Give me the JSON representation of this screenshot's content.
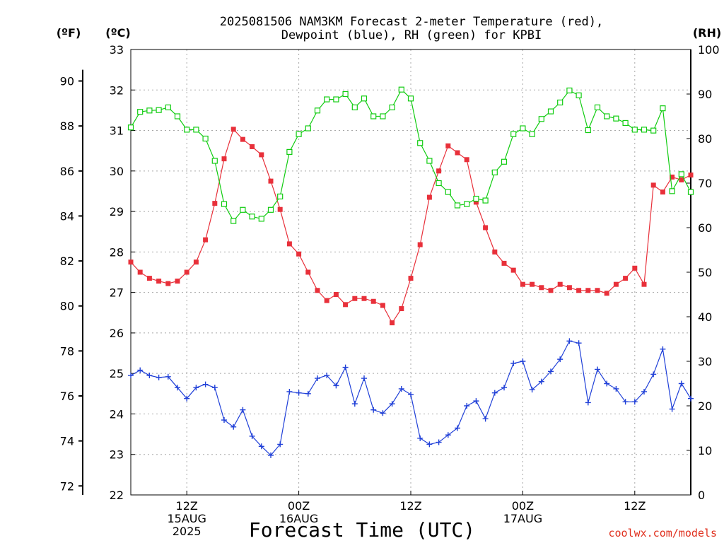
{
  "title_line1": "2025081506 NAM3KM Forecast 2-meter Temperature (red),",
  "title_line2": "Dewpoint (blue), RH (green) for KPBI",
  "unit_f": "(ºF)",
  "unit_c": "(ºC)",
  "unit_rh": "(RH)",
  "xlabel": "Forecast Time (UTC)",
  "credit": "coolwx.com/models",
  "colors": {
    "temperature": "#e8303a",
    "dewpoint": "#2040d8",
    "rh": "#10cc10",
    "credit": "#e0301e"
  },
  "chart_data": {
    "type": "line",
    "x": [
      6,
      7,
      8,
      9,
      10,
      11,
      12,
      13,
      14,
      15,
      16,
      17,
      18,
      19,
      20,
      21,
      22,
      23,
      24,
      25,
      26,
      27,
      28,
      29,
      30,
      31,
      32,
      33,
      34,
      35,
      36,
      37,
      38,
      39,
      40,
      41,
      42,
      43,
      44,
      45,
      46,
      47,
      48,
      49,
      50,
      51,
      52,
      53,
      54,
      55,
      56,
      57,
      58,
      59,
      60,
      61,
      62,
      63,
      64,
      65,
      66
    ],
    "x_tick_hours": [
      12,
      24,
      36,
      48,
      60
    ],
    "x_tick_labels": [
      [
        "12Z",
        "15AUG",
        "2025"
      ],
      [
        "00Z",
        "16AUG"
      ],
      [
        "12Z"
      ],
      [
        "00Z",
        "17AUG"
      ],
      [
        "12Z"
      ]
    ],
    "xlim": [
      6,
      66
    ],
    "left_axis_c": {
      "ylim": [
        22,
        33
      ],
      "ticks": [
        22,
        23,
        24,
        25,
        26,
        27,
        28,
        29,
        30,
        31,
        32,
        33
      ]
    },
    "left_axis_f": {
      "ticks": [
        72,
        74,
        76,
        78,
        80,
        82,
        84,
        86,
        88,
        90
      ]
    },
    "right_axis_rh": {
      "ylim": [
        0,
        100
      ],
      "ticks": [
        0,
        10,
        20,
        30,
        40,
        50,
        60,
        70,
        80,
        90,
        100
      ]
    },
    "series": [
      {
        "key": "temperature",
        "axis": "c",
        "marker": "filled-square",
        "values": [
          27.75,
          27.5,
          27.35,
          27.28,
          27.22,
          27.28,
          27.5,
          27.75,
          28.3,
          29.2,
          30.3,
          31.03,
          30.78,
          30.6,
          30.4,
          29.75,
          29.05,
          28.2,
          27.95,
          27.5,
          27.05,
          26.8,
          26.95,
          26.7,
          26.85,
          26.85,
          26.78,
          26.68,
          26.25,
          26.6,
          27.35,
          28.18,
          29.35,
          30.0,
          30.62,
          30.45,
          30.28,
          29.23,
          28.6,
          28.0,
          27.72,
          27.55,
          27.2,
          27.2,
          27.12,
          27.05,
          27.2,
          27.12,
          27.05,
          27.05,
          27.05,
          26.98,
          27.2,
          27.35,
          27.6,
          27.2,
          29.65,
          29.48,
          29.85,
          29.78,
          29.9
        ]
      },
      {
        "key": "dewpoint",
        "axis": "c",
        "marker": "plus",
        "values": [
          24.95,
          25.08,
          24.95,
          24.9,
          24.92,
          24.65,
          24.38,
          24.65,
          24.73,
          24.65,
          23.85,
          23.68,
          24.1,
          23.45,
          23.2,
          22.98,
          23.25,
          24.55,
          24.52,
          24.5,
          24.88,
          24.95,
          24.7,
          25.15,
          24.25,
          24.88,
          24.1,
          24.02,
          24.25,
          24.62,
          24.48,
          23.4,
          23.25,
          23.3,
          23.48,
          23.65,
          24.2,
          24.32,
          23.88,
          24.52,
          24.65,
          25.25,
          25.3,
          24.6,
          24.8,
          25.05,
          25.35,
          25.8,
          25.75,
          24.28,
          25.1,
          24.75,
          24.62,
          24.3,
          24.3,
          24.55,
          24.98,
          25.6,
          24.12,
          24.75,
          24.38
        ]
      },
      {
        "key": "rh",
        "axis": "rh",
        "marker": "open-square",
        "values": [
          82.5,
          86,
          86.3,
          86.4,
          87,
          85,
          82,
          82,
          80,
          75,
          65.3,
          61.5,
          64,
          62.5,
          62,
          64,
          67,
          77,
          81,
          82.3,
          86.3,
          88.8,
          88.8,
          90,
          87,
          89,
          85,
          85,
          87,
          91,
          89,
          79,
          75,
          70,
          68,
          65,
          65.3,
          66.5,
          66.1,
          72.4,
          74.8,
          81,
          82.3,
          81,
          84.4,
          86.1,
          88.1,
          90.8,
          89.7,
          81.9,
          87,
          85,
          84.5,
          83.5,
          82,
          82,
          81.8,
          86.8,
          68.2,
          72,
          68
        ]
      }
    ]
  }
}
